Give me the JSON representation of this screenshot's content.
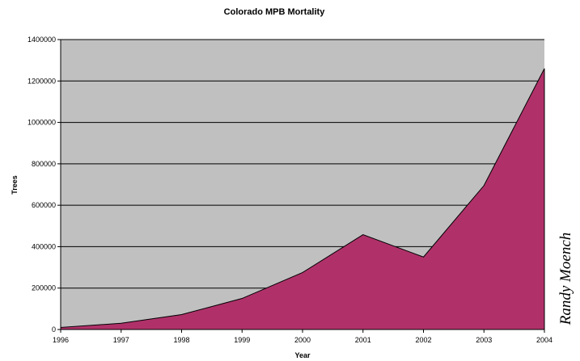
{
  "chart_data": {
    "type": "area",
    "title": "Colorado MPB Mortality",
    "xlabel": "Year",
    "ylabel": "Trees",
    "x": [
      "1996",
      "1997",
      "1998",
      "1999",
      "2000",
      "2001",
      "2002",
      "2003",
      "2004"
    ],
    "series": [
      {
        "values": [
          10000,
          30000,
          72000,
          150000,
          275000,
          458000,
          350000,
          695000,
          1260000
        ]
      }
    ],
    "ylim": [
      0,
      1400000
    ],
    "yticks": [
      "0",
      "200000",
      "400000",
      "600000",
      "800000",
      "1000000",
      "1200000",
      "1400000"
    ],
    "grid": true,
    "legend": "none"
  },
  "colors": {
    "plot_background": "#c0c0c0",
    "area_fill": "#b0316a",
    "gridline": "#000000"
  },
  "credit": "Randy Moench"
}
